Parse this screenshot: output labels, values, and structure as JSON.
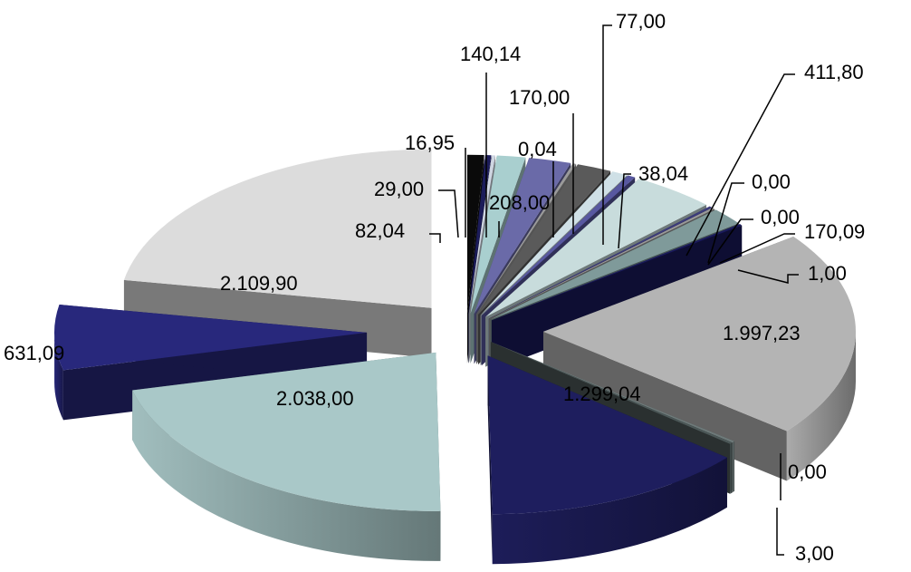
{
  "chart_data": {
    "type": "pie",
    "style": "3d-exploded",
    "legend": "none",
    "slices": [
      {
        "value": 82.04,
        "label": "82,04",
        "color": "#0a0a0a"
      },
      {
        "value": 29.0,
        "label": "29,00",
        "color": "#1c1c5a"
      },
      {
        "value": 16.95,
        "label": "16,95",
        "color": "#cfd6e2"
      },
      {
        "value": 140.14,
        "label": "140,14",
        "color": "#a9cfcf"
      },
      {
        "value": 208.0,
        "label": "208,00",
        "color": "#6a6aa8"
      },
      {
        "value": 0.04,
        "label": "0,04",
        "color": "#9a9a9a"
      },
      {
        "value": 170.0,
        "label": "170,00",
        "color": "#5a5a5a"
      },
      {
        "value": 77.0,
        "label": "77,00",
        "color": "#cfe0e6"
      },
      {
        "value": 38.04,
        "label": "38,04",
        "color": "#5858a0"
      },
      {
        "value": 411.8,
        "label": "411,80",
        "color": "#c8dcdc"
      },
      {
        "value": 0.0,
        "label": "0,00",
        "color": "#3c3c7c"
      },
      {
        "value": 0.0,
        "label": "0,00",
        "color": "#9a9a9a"
      },
      {
        "value": 170.09,
        "label": "170,09",
        "color": "#7f9a9a"
      },
      {
        "value": 1.0,
        "label": "1,00",
        "color": "#1a1a5c"
      },
      {
        "value": 1997.23,
        "label": "1.997,23",
        "color": "#b4b4b4"
      },
      {
        "value": 0.0,
        "label": "0,00",
        "color": "#6e7a7a"
      },
      {
        "value": 3.0,
        "label": "3,00",
        "color": "#4c5858"
      },
      {
        "value": 1299.04,
        "label": "1.299,04",
        "color": "#1e1e5e"
      },
      {
        "value": 2038.0,
        "label": "2.038,00",
        "color": "#a9c8c8"
      },
      {
        "value": 631.09,
        "label": "631,09",
        "color": "#28287c"
      },
      {
        "value": 2109.9,
        "label": "2.109,90",
        "color": "#dcdcdc"
      }
    ]
  }
}
